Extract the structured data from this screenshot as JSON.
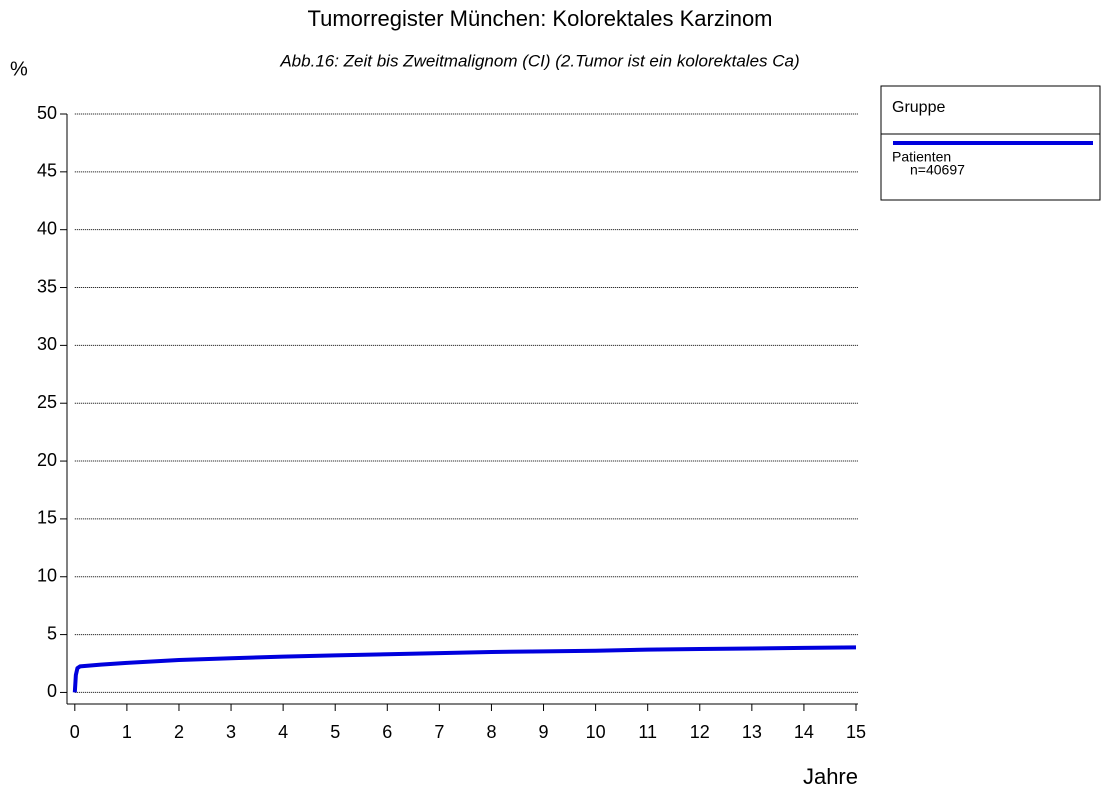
{
  "chart_data": {
    "type": "line",
    "title": "Tumorregister München: Kolorektales Karzinom",
    "subtitle": "Abb.16: Zeit bis Zweitmalignom (CI) (2.Tumor ist ein kolorektales Ca)",
    "y_label": "%",
    "x_label": "Jahre",
    "x": [
      0,
      0.02,
      0.05,
      0.1,
      0.5,
      1,
      2,
      3,
      4,
      5,
      6,
      7,
      8,
      9,
      10,
      11,
      12,
      13,
      14,
      15
    ],
    "series": [
      {
        "name": "Patienten",
        "color": "#0000dd",
        "values": [
          0,
          1.5,
          2.1,
          2.25,
          2.4,
          2.55,
          2.8,
          2.95,
          3.1,
          3.2,
          3.3,
          3.4,
          3.5,
          3.55,
          3.6,
          3.7,
          3.75,
          3.8,
          3.85,
          3.9
        ]
      }
    ],
    "legend_title": "Gruppe",
    "legend_note": "n=40697",
    "xlim": [
      -0.15,
      15
    ],
    "ylim": [
      -1,
      50
    ],
    "xticks": [
      0,
      1,
      2,
      3,
      4,
      5,
      6,
      7,
      8,
      9,
      10,
      11,
      12,
      13,
      14,
      15
    ],
    "yticks": [
      0,
      5,
      10,
      15,
      20,
      25,
      30,
      35,
      40,
      45,
      50
    ],
    "grid": true,
    "legend": "right"
  }
}
